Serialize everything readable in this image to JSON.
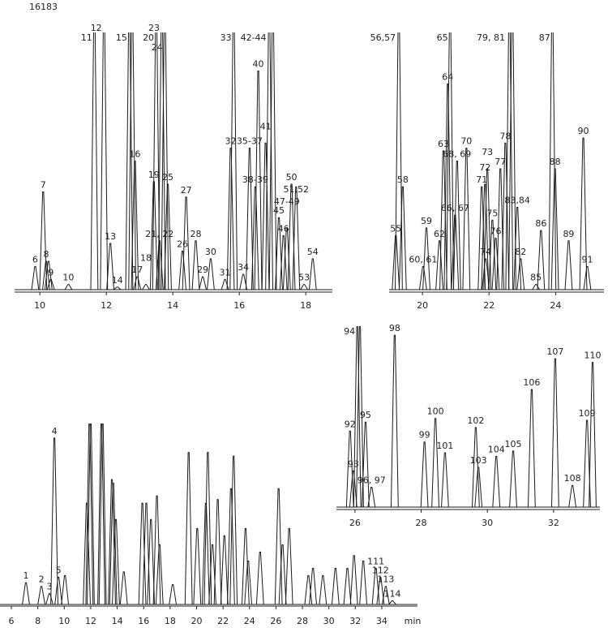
{
  "title": "16183",
  "chart_data": [
    {
      "type": "peaks",
      "xlim": [
        9.24,
        18.8
      ],
      "ylim": [
        0,
        100
      ],
      "xticks": [
        10,
        12,
        14,
        16,
        18
      ],
      "peaks": [
        {
          "t": 9.86,
          "h": 9,
          "label": "6"
        },
        {
          "t": 10.1,
          "h": 38,
          "label": "7"
        },
        {
          "t": 10.19,
          "h": 11,
          "label": "8"
        },
        {
          "t": 10.26,
          "h": 11
        },
        {
          "t": 10.33,
          "h": 4,
          "label": "9"
        },
        {
          "t": 10.86,
          "h": 2,
          "label": "10"
        },
        {
          "t": 11.64,
          "h": 110,
          "label": "11"
        },
        {
          "t": 11.93,
          "h": 110,
          "label": "12"
        },
        {
          "t": 12.12,
          "h": 18,
          "label": "13"
        },
        {
          "t": 12.33,
          "h": 1,
          "label": "14"
        },
        {
          "t": 12.69,
          "h": 110,
          "label": "15"
        },
        {
          "t": 12.78,
          "h": 110
        },
        {
          "t": 12.86,
          "h": 50,
          "label": "16"
        },
        {
          "t": 12.93,
          "h": 5,
          "label": "17"
        },
        {
          "t": 13.19,
          "h": 2,
          "label": "18"
        },
        {
          "t": 13.43,
          "h": 42,
          "label": "19"
        },
        {
          "t": 13.5,
          "h": 110,
          "label": "20"
        },
        {
          "t": 13.6,
          "h": 19,
          "label": "21, 22"
        },
        {
          "t": 13.67,
          "h": 110,
          "label": "23"
        },
        {
          "t": 13.76,
          "h": 110,
          "label": "24"
        },
        {
          "t": 13.85,
          "h": 41,
          "label": "25"
        },
        {
          "t": 14.29,
          "h": 15,
          "label": "26"
        },
        {
          "t": 14.4,
          "h": 36,
          "label": "27"
        },
        {
          "t": 14.69,
          "h": 19,
          "label": "28"
        },
        {
          "t": 14.9,
          "h": 5,
          "label": "29"
        },
        {
          "t": 15.14,
          "h": 12,
          "label": "30"
        },
        {
          "t": 15.57,
          "h": 4,
          "label": "31"
        },
        {
          "t": 15.74,
          "h": 55,
          "label": "32"
        },
        {
          "t": 15.83,
          "h": 110,
          "label": "33"
        },
        {
          "t": 16.12,
          "h": 6,
          "label": "34"
        },
        {
          "t": 16.31,
          "h": 55,
          "label": "35-37"
        },
        {
          "t": 16.48,
          "h": 40,
          "label": "38-39"
        },
        {
          "t": 16.57,
          "h": 85,
          "label": "40"
        },
        {
          "t": 16.79,
          "h": 57,
          "label": "41"
        },
        {
          "t": 16.9,
          "h": 110,
          "label": "42-44"
        },
        {
          "t": 17.01,
          "h": 110
        },
        {
          "t": 17.19,
          "h": 28,
          "label": "45"
        },
        {
          "t": 17.33,
          "h": 21,
          "label": "46"
        },
        {
          "t": 17.43,
          "h": 24,
          "label": "47-49"
        },
        {
          "t": 17.57,
          "h": 41,
          "label": "50"
        },
        {
          "t": 17.71,
          "h": 40,
          "label": "51,52"
        },
        {
          "t": 17.95,
          "h": 2,
          "label": "53"
        },
        {
          "t": 18.21,
          "h": 12,
          "label": "54"
        }
      ]
    },
    {
      "type": "peaks",
      "xlim": [
        19.0,
        25.45
      ],
      "ylim": [
        0,
        100
      ],
      "xticks": [
        20,
        22,
        24
      ],
      "peaks": [
        {
          "t": 19.2,
          "h": 21,
          "label": "55"
        },
        {
          "t": 19.29,
          "h": 110,
          "label": "56,57"
        },
        {
          "t": 19.41,
          "h": 40,
          "label": "58"
        },
        {
          "t": 20.02,
          "h": 9,
          "label": "60, 61"
        },
        {
          "t": 20.12,
          "h": 24,
          "label": "59"
        },
        {
          "t": 20.51,
          "h": 19,
          "label": "62"
        },
        {
          "t": 20.63,
          "h": 54,
          "label": "63"
        },
        {
          "t": 20.76,
          "h": 80,
          "label": "64"
        },
        {
          "t": 20.83,
          "h": 110,
          "label": "65"
        },
        {
          "t": 20.98,
          "h": 29,
          "label": "66, 67"
        },
        {
          "t": 21.04,
          "h": 50,
          "label": "68, 69"
        },
        {
          "t": 21.32,
          "h": 55,
          "label": "70"
        },
        {
          "t": 21.78,
          "h": 40,
          "label": "71"
        },
        {
          "t": 21.88,
          "h": 41,
          "label": "72"
        },
        {
          "t": 21.95,
          "h": 47,
          "label": "73"
        },
        {
          "t": 21.9,
          "h": 12,
          "label": "74"
        },
        {
          "t": 22.1,
          "h": 27,
          "label": "75"
        },
        {
          "t": 22.2,
          "h": 20,
          "label": "76"
        },
        {
          "t": 22.34,
          "h": 47,
          "label": "77"
        },
        {
          "t": 22.49,
          "h": 57,
          "label": "78"
        },
        {
          "t": 22.61,
          "h": 110,
          "label": "79, 81"
        },
        {
          "t": 22.7,
          "h": 110
        },
        {
          "t": 22.85,
          "h": 32,
          "label": "83,84"
        },
        {
          "t": 22.95,
          "h": 12,
          "label": "82"
        },
        {
          "t": 23.41,
          "h": 2,
          "label": "85"
        },
        {
          "t": 23.56,
          "h": 23,
          "label": "86"
        },
        {
          "t": 23.9,
          "h": 110,
          "label": "87"
        },
        {
          "t": 23.98,
          "h": 47,
          "label": "88"
        },
        {
          "t": 24.39,
          "h": 19,
          "label": "89"
        },
        {
          "t": 24.83,
          "h": 59,
          "label": "90"
        },
        {
          "t": 24.95,
          "h": 9,
          "label": "91"
        }
      ]
    },
    {
      "type": "peaks",
      "xlim": [
        5.14,
        36.7
      ],
      "ylim": [
        0,
        100
      ],
      "xticks": [
        6,
        8,
        10,
        12,
        14,
        16,
        18,
        20,
        22,
        24,
        26,
        28,
        30,
        32,
        34
      ],
      "x_unit": "min",
      "peaks": [
        {
          "t": 7.1,
          "h": 12,
          "label": "1"
        },
        {
          "t": 8.27,
          "h": 10,
          "label": "2"
        },
        {
          "t": 8.88,
          "h": 6,
          "label": "3"
        },
        {
          "t": 9.25,
          "h": 92,
          "label": "4"
        },
        {
          "t": 9.56,
          "h": 15,
          "label": "5"
        },
        {
          "t": 10.05,
          "h": 16
        },
        {
          "t": 11.7,
          "h": 56
        },
        {
          "t": 11.9,
          "h": 100
        },
        {
          "t": 12.0,
          "h": 100
        },
        {
          "t": 12.8,
          "h": 100
        },
        {
          "t": 12.9,
          "h": 100
        },
        {
          "t": 13.6,
          "h": 69
        },
        {
          "t": 13.7,
          "h": 67
        },
        {
          "t": 13.9,
          "h": 47
        },
        {
          "t": 14.5,
          "h": 18
        },
        {
          "t": 15.9,
          "h": 56
        },
        {
          "t": 16.2,
          "h": 56
        },
        {
          "t": 16.55,
          "h": 47
        },
        {
          "t": 17.0,
          "h": 60
        },
        {
          "t": 17.2,
          "h": 33
        },
        {
          "t": 18.2,
          "h": 11
        },
        {
          "t": 19.4,
          "h": 84
        },
        {
          "t": 20.05,
          "h": 42
        },
        {
          "t": 20.7,
          "h": 56
        },
        {
          "t": 20.85,
          "h": 84
        },
        {
          "t": 21.2,
          "h": 33
        },
        {
          "t": 21.6,
          "h": 58
        },
        {
          "t": 22.1,
          "h": 38
        },
        {
          "t": 22.6,
          "h": 64
        },
        {
          "t": 22.8,
          "h": 82
        },
        {
          "t": 23.7,
          "h": 42
        },
        {
          "t": 23.9,
          "h": 24
        },
        {
          "t": 24.8,
          "h": 29
        },
        {
          "t": 26.2,
          "h": 64
        },
        {
          "t": 26.5,
          "h": 33
        },
        {
          "t": 27.0,
          "h": 42
        },
        {
          "t": 28.45,
          "h": 16
        },
        {
          "t": 28.8,
          "h": 20
        },
        {
          "t": 29.55,
          "h": 16
        },
        {
          "t": 30.5,
          "h": 20
        },
        {
          "t": 31.4,
          "h": 20
        },
        {
          "t": 31.9,
          "h": 27
        },
        {
          "t": 32.6,
          "h": 24
        },
        {
          "t": 33.55,
          "h": 20,
          "label": "111"
        },
        {
          "t": 33.9,
          "h": 15,
          "label": "112"
        },
        {
          "t": 34.3,
          "h": 10,
          "label": "113"
        },
        {
          "t": 34.8,
          "h": 2,
          "label": "114"
        }
      ]
    },
    {
      "type": "peaks",
      "xlim": [
        25.44,
        33.4
      ],
      "ylim": [
        0,
        100
      ],
      "xticks": [
        26,
        28,
        30,
        32
      ],
      "peaks": [
        {
          "t": 25.85,
          "h": 42,
          "label": "92"
        },
        {
          "t": 25.95,
          "h": 20,
          "label": "93"
        },
        {
          "t": 26.07,
          "h": 100,
          "label": "94"
        },
        {
          "t": 26.15,
          "h": 100
        },
        {
          "t": 26.32,
          "h": 47,
          "label": "95"
        },
        {
          "t": 26.5,
          "h": 11,
          "label": "96, 97"
        },
        {
          "t": 27.2,
          "h": 95,
          "label": "98"
        },
        {
          "t": 28.1,
          "h": 36,
          "label": "99"
        },
        {
          "t": 28.43,
          "h": 49,
          "label": "100"
        },
        {
          "t": 28.72,
          "h": 30,
          "label": "101"
        },
        {
          "t": 29.65,
          "h": 44,
          "label": "102"
        },
        {
          "t": 29.73,
          "h": 22,
          "label": "103"
        },
        {
          "t": 30.27,
          "h": 28,
          "label": "104"
        },
        {
          "t": 30.78,
          "h": 31,
          "label": "105"
        },
        {
          "t": 31.34,
          "h": 65,
          "label": "106"
        },
        {
          "t": 32.05,
          "h": 82,
          "label": "107"
        },
        {
          "t": 32.57,
          "h": 12,
          "label": "108"
        },
        {
          "t": 33.01,
          "h": 48,
          "label": "109"
        },
        {
          "t": 33.18,
          "h": 80,
          "label": "110"
        }
      ]
    }
  ]
}
